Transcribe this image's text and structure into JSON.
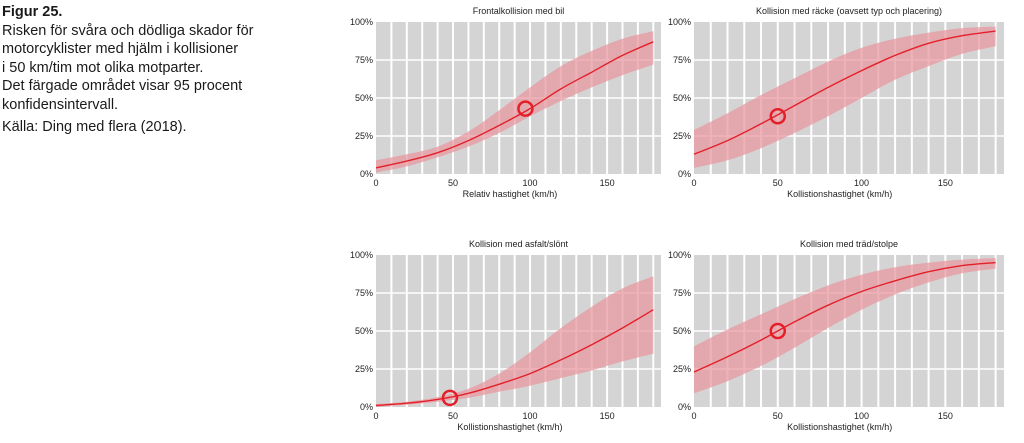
{
  "caption": {
    "title": "Figur 25.",
    "lines": [
      "Risken för svåra och dödliga skador för",
      "motorcyklister med hjälm i kollisioner",
      "i 50 km/tim mot olika motparter.",
      "Det färgade området visar 95 procent",
      "konfidensintervall."
    ],
    "source": "Källa: Ding med flera (2018)."
  },
  "colors": {
    "panel_bg": "#d4d4d4",
    "grid": "#ffffff",
    "band": "#e89aa0",
    "line": "#e3202a",
    "marker": "#e3202a"
  },
  "chart_data": [
    {
      "type": "line",
      "title": "Frontalkollision med bil",
      "xlabel": "Relativ hastighet (km/h)",
      "ylabel": "",
      "xlim": [
        0,
        185
      ],
      "ylim": [
        0,
        1
      ],
      "xticks": [
        0,
        50,
        100,
        150
      ],
      "xtick_labels": [
        "0",
        "50",
        "100",
        "150"
      ],
      "yticks": [
        0,
        0.25,
        0.5,
        0.75,
        1
      ],
      "ytick_labels": [
        "0%",
        "25%",
        "50%",
        "75%",
        "100%"
      ],
      "x": [
        0,
        20,
        40,
        60,
        80,
        100,
        120,
        140,
        160,
        180
      ],
      "y": [
        0.04,
        0.085,
        0.14,
        0.22,
        0.32,
        0.43,
        0.56,
        0.67,
        0.78,
        0.87
      ],
      "ci_lower": [
        0.01,
        0.05,
        0.11,
        0.18,
        0.27,
        0.38,
        0.48,
        0.57,
        0.65,
        0.72
      ],
      "ci_upper": [
        0.09,
        0.13,
        0.18,
        0.28,
        0.42,
        0.57,
        0.71,
        0.81,
        0.89,
        0.94
      ],
      "marker": {
        "x": 97,
        "y": 0.43
      },
      "grid": true
    },
    {
      "type": "line",
      "title": "Kollision med räcke (oavsett typ och placering)",
      "xlabel": "Kollistionshastighet (km/h)",
      "ylabel": "",
      "xlim": [
        0,
        185
      ],
      "ylim": [
        0,
        1
      ],
      "xticks": [
        0,
        50,
        100,
        150
      ],
      "xtick_labels": [
        "0",
        "50",
        "100",
        "150"
      ],
      "yticks": [
        0,
        0.25,
        0.5,
        0.75,
        1
      ],
      "ytick_labels": [
        "0%",
        "25%",
        "50%",
        "75%",
        "100%"
      ],
      "x": [
        0,
        20,
        40,
        60,
        80,
        100,
        120,
        140,
        160,
        180
      ],
      "y": [
        0.13,
        0.22,
        0.33,
        0.45,
        0.57,
        0.68,
        0.78,
        0.86,
        0.91,
        0.94
      ],
      "ci_lower": [
        0.04,
        0.09,
        0.17,
        0.27,
        0.38,
        0.5,
        0.62,
        0.71,
        0.79,
        0.84
      ],
      "ci_upper": [
        0.29,
        0.4,
        0.52,
        0.63,
        0.74,
        0.83,
        0.89,
        0.93,
        0.96,
        0.97
      ],
      "marker": {
        "x": 50,
        "y": 0.38
      },
      "grid": true
    },
    {
      "type": "line",
      "title": "Kollision med asfalt/slönt",
      "xlabel": "Kollistionshastighet (km/h)",
      "ylabel": "",
      "xlim": [
        0,
        185
      ],
      "ylim": [
        0,
        1
      ],
      "xticks": [
        0,
        50,
        100,
        150
      ],
      "xtick_labels": [
        "0",
        "50",
        "100",
        "150"
      ],
      "yticks": [
        0,
        0.25,
        0.5,
        0.75,
        1
      ],
      "ytick_labels": [
        "0%",
        "25%",
        "50%",
        "75%",
        "100%"
      ],
      "x": [
        0,
        20,
        40,
        60,
        80,
        100,
        120,
        140,
        160,
        180
      ],
      "y": [
        0.01,
        0.025,
        0.05,
        0.09,
        0.15,
        0.22,
        0.31,
        0.41,
        0.52,
        0.64
      ],
      "ci_lower": [
        0.0,
        0.015,
        0.035,
        0.06,
        0.1,
        0.14,
        0.19,
        0.24,
        0.3,
        0.35
      ],
      "ci_upper": [
        0.02,
        0.035,
        0.065,
        0.12,
        0.22,
        0.36,
        0.52,
        0.66,
        0.78,
        0.86
      ],
      "marker": {
        "x": 48,
        "y": 0.06
      },
      "grid": true
    },
    {
      "type": "line",
      "title": "Kollision med träd/stolpe",
      "xlabel": "Kollistionshastighet (km/h)",
      "ylabel": "",
      "xlim": [
        0,
        185
      ],
      "ylim": [
        0,
        1
      ],
      "xticks": [
        0,
        50,
        100,
        150
      ],
      "xtick_labels": [
        "0",
        "50",
        "100",
        "150"
      ],
      "yticks": [
        0,
        0.25,
        0.5,
        0.75,
        1
      ],
      "ytick_labels": [
        "0%",
        "25%",
        "50%",
        "75%",
        "100%"
      ],
      "x": [
        0,
        20,
        40,
        60,
        80,
        100,
        120,
        140,
        160,
        180
      ],
      "y": [
        0.23,
        0.33,
        0.44,
        0.56,
        0.67,
        0.76,
        0.83,
        0.89,
        0.93,
        0.95
      ],
      "ci_lower": [
        0.09,
        0.17,
        0.27,
        0.39,
        0.52,
        0.64,
        0.74,
        0.82,
        0.88,
        0.91
      ],
      "ci_upper": [
        0.4,
        0.51,
        0.61,
        0.71,
        0.8,
        0.87,
        0.92,
        0.95,
        0.97,
        0.98
      ],
      "marker": {
        "x": 50,
        "y": 0.5
      },
      "grid": true
    }
  ]
}
